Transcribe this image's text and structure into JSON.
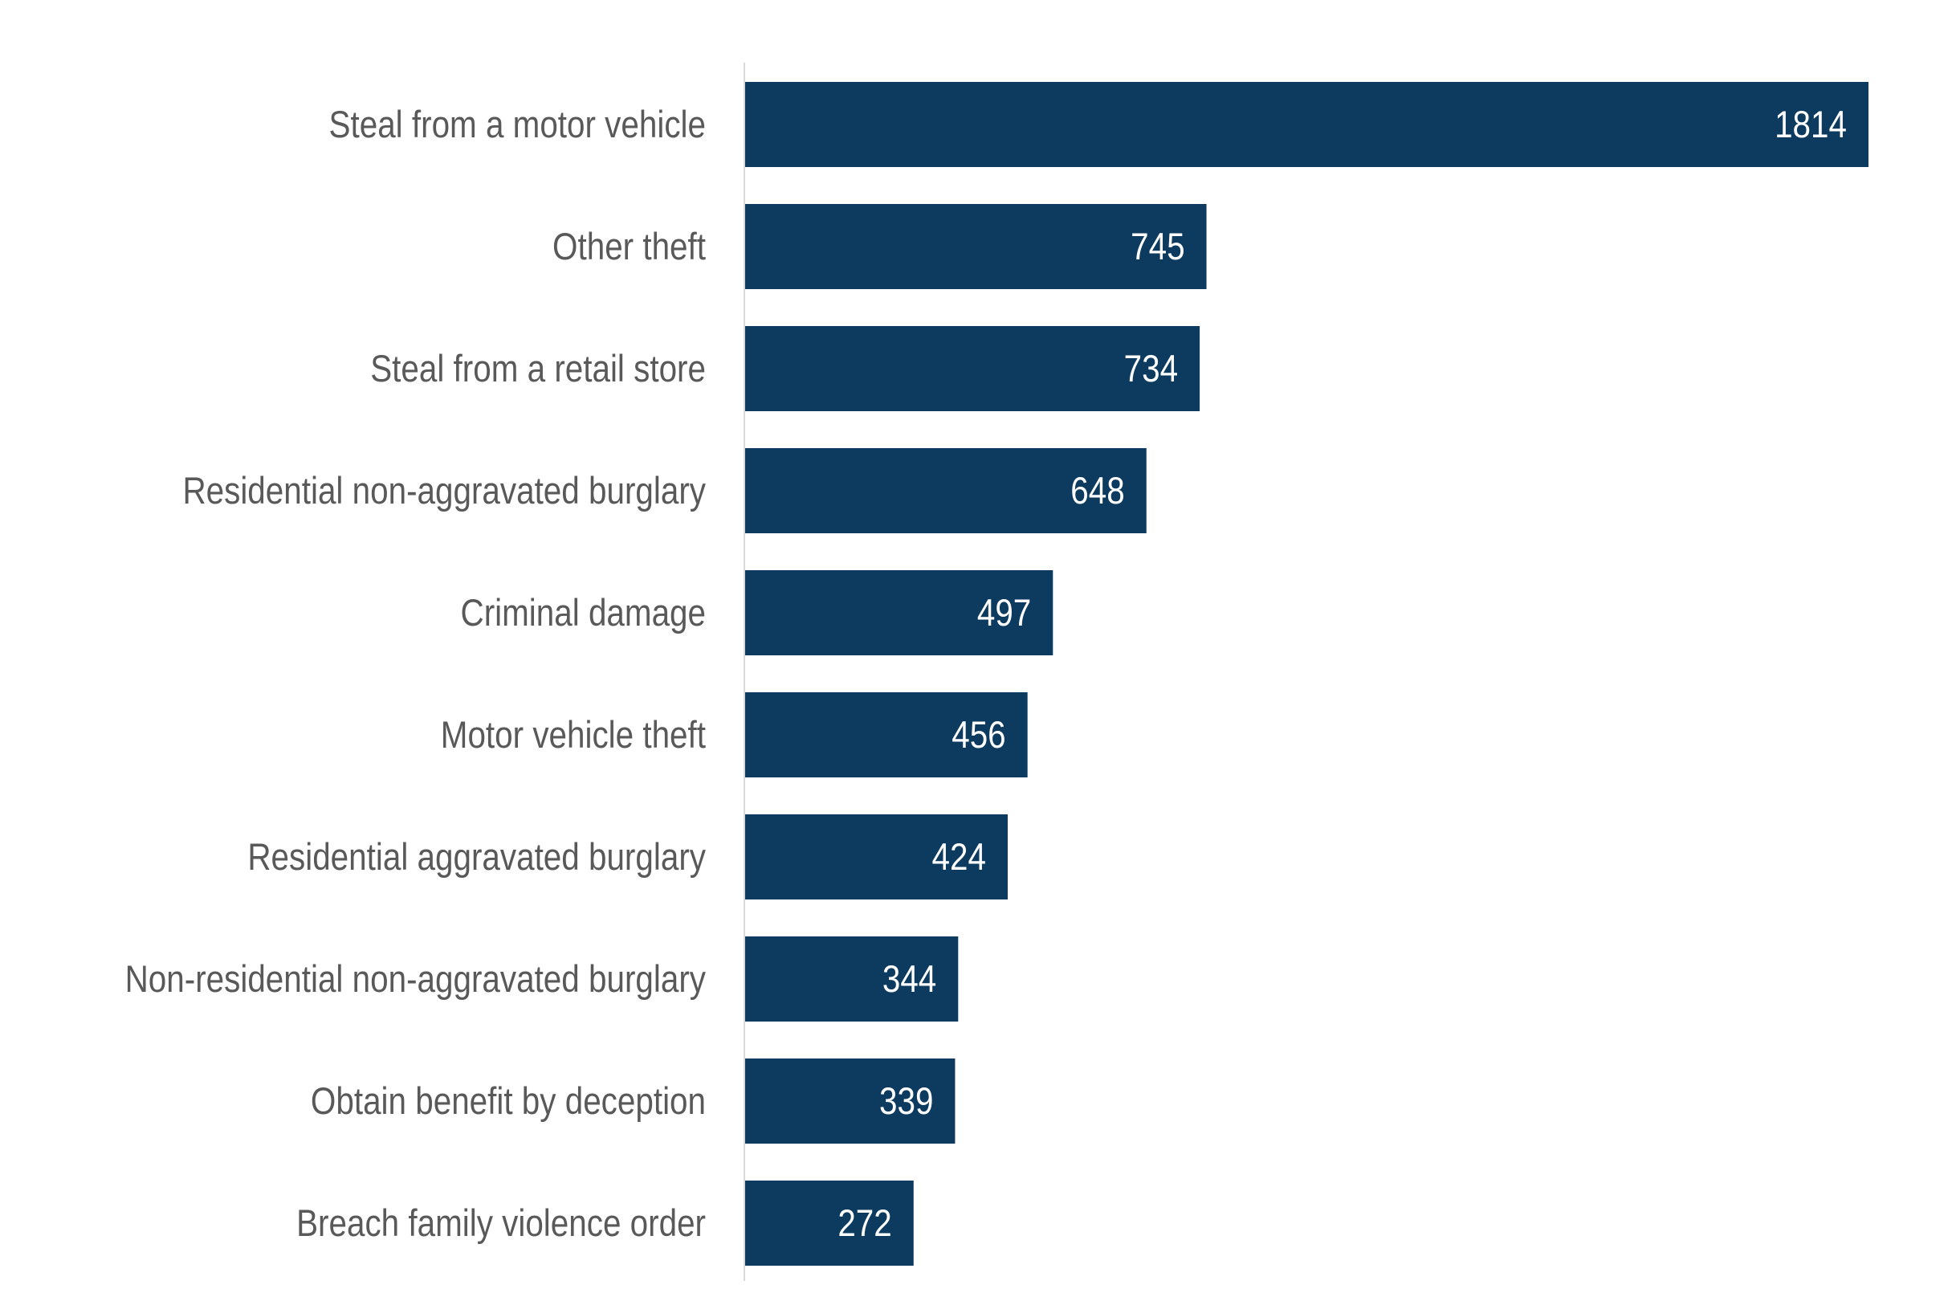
{
  "chart_data": {
    "type": "bar",
    "orientation": "horizontal",
    "title": "",
    "xlabel": "",
    "ylabel": "",
    "categories": [
      "Steal from a motor vehicle",
      "Other theft",
      "Steal from a retail store",
      "Residential non-aggravated burglary",
      "Criminal damage",
      "Motor vehicle theft",
      "Residential aggravated burglary",
      "Non-residential non-aggravated burglary",
      "Obtain benefit by deception",
      "Breach family violence order"
    ],
    "values": [
      1814,
      745,
      734,
      648,
      497,
      456,
      424,
      344,
      339,
      272
    ],
    "xlim": [
      0,
      1814
    ],
    "grid": false,
    "data_labels": true,
    "colors": {
      "bar": "#0d3a5f",
      "label": "#595959",
      "axis": "#d9d9d9",
      "value_label": "#ffffff"
    }
  }
}
